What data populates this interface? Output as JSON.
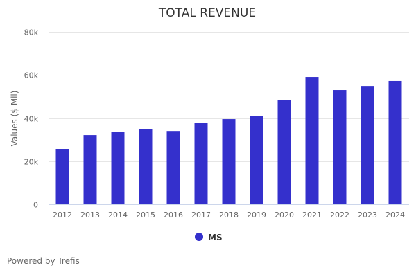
{
  "chart_data": {
    "type": "bar",
    "title": "TOTAL REVENUE",
    "xlabel": "",
    "ylabel": "Values ($ Mil)",
    "ylim": [
      0,
      80000
    ],
    "yticks": [
      0,
      20000,
      40000,
      60000,
      80000
    ],
    "ytick_labels": [
      "0",
      "20k",
      "40k",
      "60k",
      "80k"
    ],
    "grid": true,
    "legend_position": "bottom-center",
    "categories": [
      "2012",
      "2013",
      "2014",
      "2015",
      "2016",
      "2017",
      "2018",
      "2019",
      "2020",
      "2021",
      "2022",
      "2023",
      "2024"
    ],
    "series": [
      {
        "name": "MS",
        "color": "#3430cc",
        "values": [
          25700,
          32100,
          33700,
          34700,
          34000,
          37600,
          39500,
          41100,
          48200,
          59100,
          53000,
          54900,
          57200
        ]
      }
    ]
  },
  "footer": {
    "credit": "Powered by Trefis"
  },
  "colors": {
    "bar": "#3430cc",
    "grid": "#e6e6e6",
    "axis": "#ccd6eb"
  }
}
